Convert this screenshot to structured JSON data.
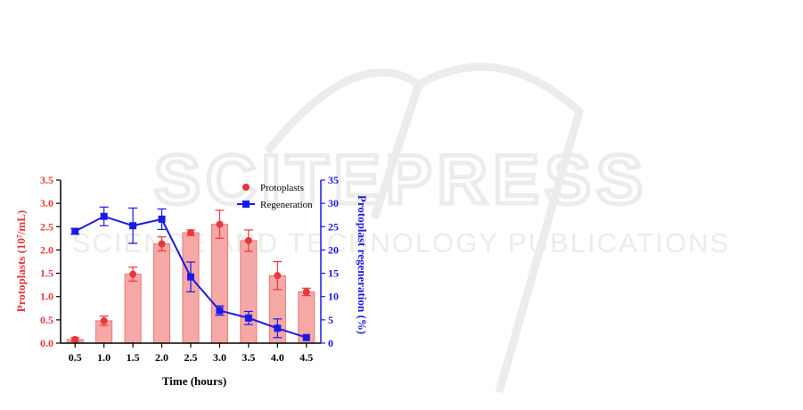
{
  "watermark": {
    "main": "SCITEPRESS",
    "sub": "SCIENCE AND TECHNOLOGY PUBLICATIONS"
  },
  "chart_data": {
    "type": "bar+line",
    "x": [
      "0.5",
      "1.0",
      "1.5",
      "2.0",
      "2.5",
      "3.0",
      "3.5",
      "4.0",
      "4.5"
    ],
    "xlabel": "Time (hours)",
    "ylabel_left": "Protoplasts (10⁷/mL)",
    "ylabel_right": "Protoplast regeneration (%)",
    "ylim_left": [
      0,
      3.5
    ],
    "yticks_left": [
      "0.0",
      "0.5",
      "1.0",
      "1.5",
      "2.0",
      "2.5",
      "3.0",
      "3.5"
    ],
    "ylim_right": [
      0,
      35
    ],
    "yticks_right": [
      "0",
      "5",
      "10",
      "15",
      "20",
      "25",
      "30",
      "35"
    ],
    "series": [
      {
        "name": "Protoplasts",
        "kind": "bar+point",
        "axis": "left",
        "values": [
          0.08,
          0.48,
          1.48,
          2.13,
          2.37,
          2.55,
          2.2,
          1.45,
          1.1
        ],
        "errors": [
          0.04,
          0.1,
          0.15,
          0.15,
          0.06,
          0.3,
          0.23,
          0.3,
          0.08
        ],
        "color": "#e8383c",
        "bar_color": "#f5a8a5"
      },
      {
        "name": "Regeneration",
        "kind": "line",
        "axis": "right",
        "values": [
          24.0,
          27.2,
          25.2,
          26.6,
          14.2,
          7.0,
          5.4,
          3.2,
          1.2
        ],
        "errors": [
          0.6,
          2.0,
          3.8,
          2.2,
          3.2,
          1.0,
          1.4,
          2.0,
          0.0
        ],
        "color": "#1a1ae6"
      }
    ],
    "legend_position": "top-right",
    "grid": false
  }
}
